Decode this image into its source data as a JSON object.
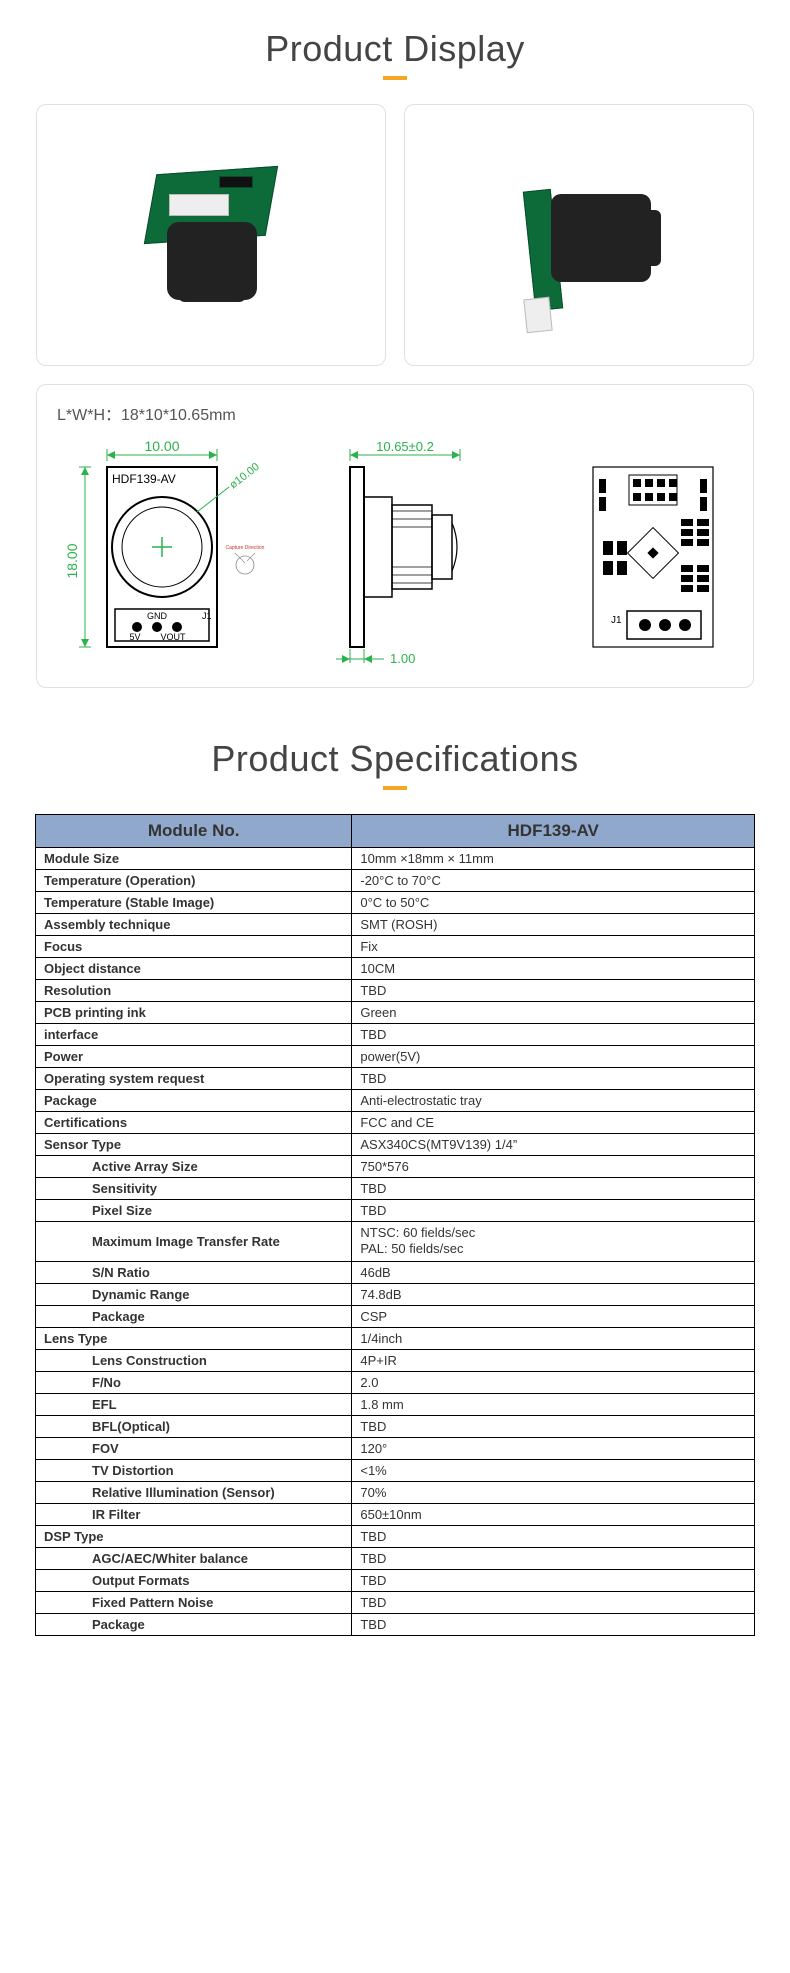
{
  "sections": {
    "display_title": "Product Display",
    "specs_title": "Product Specifications"
  },
  "accent_color": "#f5a623",
  "header_bg": "#8fa8cc",
  "diagram": {
    "dim_label": "L*W*H：18*10*10.65mm",
    "front": {
      "width_dim": "10.00",
      "height_dim": "18.00",
      "model": "HDF139-AV",
      "lens_diam": "ø10.00",
      "pin_labels": {
        "gnd": "GND",
        "j1": "J1",
        "fiveV": "5V",
        "vout": "VOUT"
      }
    },
    "side": {
      "depth_dim": "10.65±0.2",
      "base_dim": "1.00"
    },
    "back": {
      "j1": "J1"
    },
    "stroke_green": "#2bb24c",
    "stroke_black": "#000000"
  },
  "spec_header": {
    "left": "Module No.",
    "right": "HDF139-AV"
  },
  "specs": [
    {
      "label": "Module Size",
      "value": "10mm ×18mm × 11mm",
      "indent": false
    },
    {
      "label": "Temperature (Operation)",
      "value": "-20°C to 70°C",
      "indent": false
    },
    {
      "label": "Temperature (Stable Image)",
      "value": "0°C to 50°C",
      "indent": false
    },
    {
      "label": "Assembly technique",
      "value": "SMT (ROSH)",
      "indent": false
    },
    {
      "label": "Focus",
      "value": "Fix",
      "indent": false
    },
    {
      "label": "Object distance",
      "value": "10CM",
      "indent": false
    },
    {
      "label": "Resolution",
      "value": "TBD",
      "indent": false
    },
    {
      "label": "PCB printing ink",
      "value": "Green",
      "indent": false
    },
    {
      "label": "interface",
      "value": "TBD",
      "indent": false
    },
    {
      "label": "Power",
      "value": "power(5V)",
      "indent": false
    },
    {
      "label": "Operating system request",
      "value": "TBD",
      "indent": false
    },
    {
      "label": "Package",
      "value": "Anti-electrostatic tray",
      "indent": false
    },
    {
      "label": "Certifications",
      "value": "FCC and CE",
      "indent": false
    },
    {
      "label": "Sensor Type",
      "value": "ASX340CS(MT9V139)  1/4”",
      "indent": false
    },
    {
      "label": "Active Array Size",
      "value": "750*576",
      "indent": true
    },
    {
      "label": "Sensitivity",
      "value": "TBD",
      "indent": true
    },
    {
      "label": "Pixel Size",
      "value": "TBD",
      "indent": true
    },
    {
      "label": "Maximum Image Transfer Rate",
      "value": "NTSC: 60 fields/sec\nPAL: 50 fields/sec",
      "indent": true,
      "multiline": true
    },
    {
      "label": "S/N Ratio",
      "value": "46dB",
      "indent": true
    },
    {
      "label": "Dynamic Range",
      "value": "74.8dB",
      "indent": true
    },
    {
      "label": "Package",
      "value": "CSP",
      "indent": true
    },
    {
      "label": "Lens Type",
      "value": "1/4inch",
      "indent": false
    },
    {
      "label": "Lens Construction",
      "value": "4P+IR",
      "indent": true
    },
    {
      "label": "F/No",
      "value": "2.0",
      "indent": true
    },
    {
      "label": "EFL",
      "value": "1.8 mm",
      "indent": true
    },
    {
      "label": "BFL(Optical)",
      "value": "TBD",
      "indent": true
    },
    {
      "label": "FOV",
      "value": "120°",
      "indent": true
    },
    {
      "label": "TV Distortion",
      "value": "<1%",
      "indent": true
    },
    {
      "label": "Relative Illumination (Sensor)",
      "value": "70%",
      "indent": true
    },
    {
      "label": "IR Filter",
      "value": "650±10nm",
      "indent": true
    },
    {
      "label": "DSP Type",
      "value": "TBD",
      "indent": false
    },
    {
      "label": "AGC/AEC/Whiter balance",
      "value": "TBD",
      "indent": true
    },
    {
      "label": "Output Formats",
      "value": "TBD",
      "indent": true
    },
    {
      "label": "Fixed Pattern Noise",
      "value": "TBD",
      "indent": true
    },
    {
      "label": "Package",
      "value": "TBD",
      "indent": true
    }
  ]
}
